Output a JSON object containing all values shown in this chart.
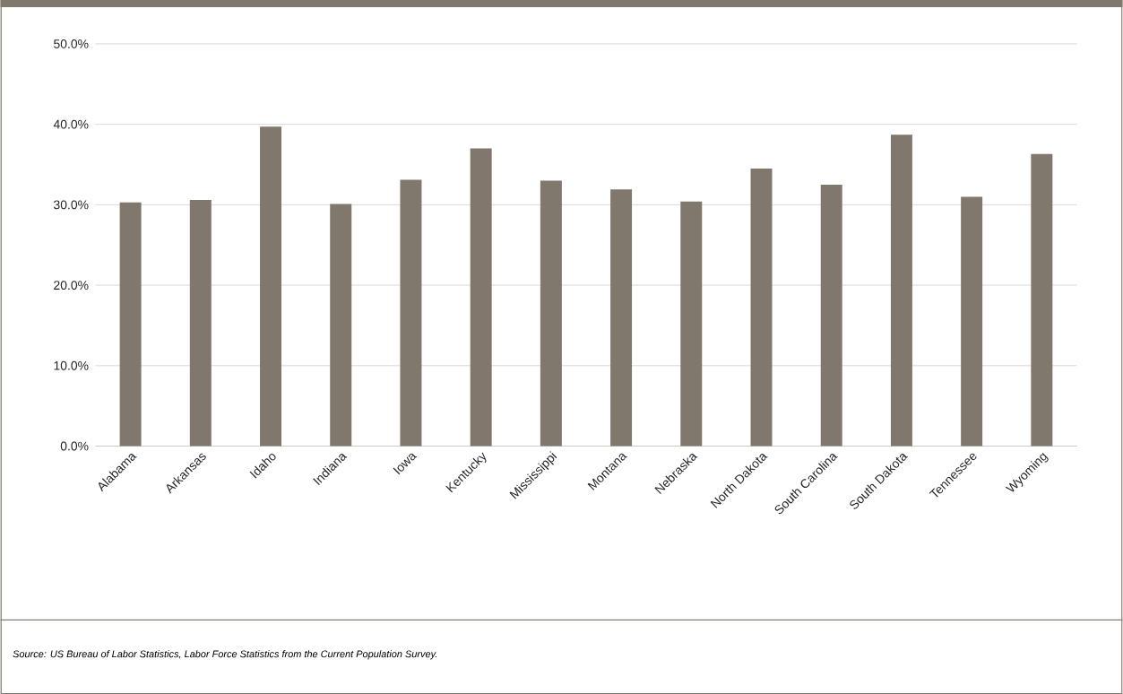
{
  "chart_data": {
    "type": "bar",
    "categories": [
      "Alabama",
      "Arkansas",
      "Idaho",
      "Indiana",
      "Iowa",
      "Kentucky",
      "Mississippi",
      "Montana",
      "Nebraska",
      "North Dakota",
      "South Carolina",
      "South Dakota",
      "Tennessee",
      "Wyoming"
    ],
    "values": [
      30.3,
      30.6,
      39.7,
      30.1,
      33.1,
      37.0,
      33.0,
      31.9,
      30.4,
      34.5,
      32.5,
      38.7,
      31.0,
      36.3
    ],
    "color": "#80776d",
    "ylim": [
      0,
      50
    ],
    "yticks": [
      {
        "value": 0,
        "label": "0.0%"
      },
      {
        "value": 10,
        "label": "10.0%"
      },
      {
        "value": 20,
        "label": "20.0%"
      },
      {
        "value": 30,
        "label": "30.0%"
      },
      {
        "value": 40,
        "label": "40.0%"
      },
      {
        "value": 50,
        "label": "50.0%"
      }
    ],
    "grid": "y",
    "annotations": [
      "Source: US Bureau of Labor Statistics, Labor Force Statistics from the Current Population Survey."
    ]
  }
}
